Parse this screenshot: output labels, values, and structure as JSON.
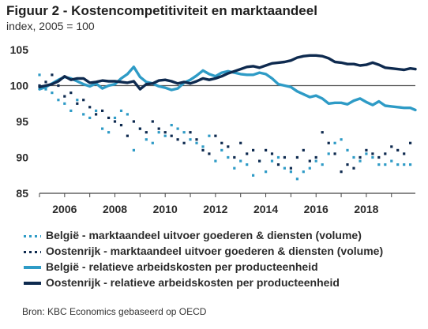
{
  "title": "Figuur 2 - Kostencompetitiviteit en marktaandeel",
  "subtitle": "index, 2005 = 100",
  "source": "Bron: KBC Economics gebaseerd op OECD",
  "colors": {
    "light_blue": "#2e9bc6",
    "dark_navy": "#0e2a4f",
    "axis": "#333333"
  },
  "chart_data": {
    "type": "line",
    "title": "Figuur 2 - Kostencompetitiviteit en marktaandeel",
    "subtitle": "index, 2005 = 100",
    "ylim": [
      85,
      105
    ],
    "yticks": [
      85,
      90,
      95,
      100,
      105
    ],
    "xlim": [
      2005.0,
      2019.95
    ],
    "xticks": [
      2006,
      2008,
      2010,
      2012,
      2014,
      2016,
      2018
    ],
    "reference_line": 100,
    "grid": false,
    "legend_position": "bottom",
    "series": [
      {
        "name": "België - marktaandeel uitvoer goederen & diensten (volume)",
        "style": "dotted",
        "color": "#2e9bc6",
        "x": [
          2005.0,
          2005.25,
          2005.5,
          2005.75,
          2006.0,
          2006.25,
          2006.5,
          2006.75,
          2007.0,
          2007.25,
          2007.5,
          2007.75,
          2008.0,
          2008.25,
          2008.5,
          2008.75,
          2009.0,
          2009.25,
          2009.5,
          2009.75,
          2010.0,
          2010.25,
          2010.5,
          2010.75,
          2011.0,
          2011.25,
          2011.5,
          2011.75,
          2012.0,
          2012.25,
          2012.5,
          2012.75,
          2013.0,
          2013.25,
          2013.5,
          2013.75,
          2014.0,
          2014.25,
          2014.5,
          2014.75,
          2015.0,
          2015.25,
          2015.5,
          2015.75,
          2016.0,
          2016.25,
          2016.5,
          2016.75,
          2017.0,
          2017.25,
          2017.5,
          2017.75,
          2018.0,
          2018.25,
          2018.5,
          2018.75,
          2019.0,
          2019.25,
          2019.5,
          2019.75
        ],
        "values": [
          101.5,
          99.5,
          99.0,
          98.0,
          97.5,
          96.5,
          98.0,
          96.0,
          95.5,
          96.5,
          94.0,
          93.5,
          95.5,
          96.5,
          96.0,
          91.0,
          94.0,
          92.5,
          92.0,
          93.5,
          93.0,
          94.5,
          94.0,
          93.5,
          92.5,
          92.0,
          91.5,
          93.0,
          89.5,
          91.0,
          90.0,
          88.5,
          89.5,
          89.0,
          87.5,
          89.5,
          88.0,
          89.5,
          90.0,
          88.5,
          88.0,
          87.0,
          88.0,
          88.5,
          89.5,
          89.0,
          90.5,
          92.0,
          92.5,
          91.0,
          90.0,
          89.5,
          90.5,
          90.0,
          89.0,
          89.0,
          89.5,
          89.0,
          89.0,
          89.0
        ]
      },
      {
        "name": "Oostenrijk - marktaandeel uitvoer goederen & diensten (volume)",
        "style": "dotted",
        "color": "#0e2a4f",
        "x": [
          2005.0,
          2005.25,
          2005.5,
          2005.75,
          2006.0,
          2006.25,
          2006.5,
          2006.75,
          2007.0,
          2007.25,
          2007.5,
          2007.75,
          2008.0,
          2008.25,
          2008.5,
          2008.75,
          2009.0,
          2009.25,
          2009.5,
          2009.75,
          2010.0,
          2010.25,
          2010.5,
          2010.75,
          2011.0,
          2011.25,
          2011.5,
          2011.75,
          2012.0,
          2012.25,
          2012.5,
          2012.75,
          2013.0,
          2013.25,
          2013.5,
          2013.75,
          2014.0,
          2014.25,
          2014.5,
          2014.75,
          2015.0,
          2015.25,
          2015.5,
          2015.75,
          2016.0,
          2016.25,
          2016.5,
          2016.75,
          2017.0,
          2017.25,
          2017.5,
          2017.75,
          2018.0,
          2018.25,
          2018.5,
          2018.75,
          2019.0,
          2019.25,
          2019.5,
          2019.75
        ],
        "values": [
          100.0,
          100.5,
          101.5,
          100.0,
          98.5,
          99.0,
          97.5,
          98.0,
          97.0,
          96.0,
          96.5,
          95.5,
          95.0,
          94.5,
          93.0,
          95.0,
          94.0,
          93.5,
          95.0,
          94.0,
          93.5,
          93.0,
          92.5,
          92.0,
          93.5,
          92.5,
          91.0,
          90.5,
          93.0,
          92.0,
          91.5,
          90.0,
          92.0,
          90.5,
          91.0,
          89.5,
          91.0,
          90.5,
          89.0,
          90.0,
          88.5,
          90.0,
          91.0,
          89.5,
          90.0,
          93.5,
          92.0,
          90.5,
          88.0,
          89.0,
          88.5,
          90.0,
          91.0,
          90.5,
          90.0,
          90.5,
          91.5,
          91.0,
          90.5,
          92.0
        ]
      },
      {
        "name": "België - relatieve arbeidskosten per producteenheid",
        "style": "solid",
        "color": "#2e9bc6",
        "x": [
          2005.0,
          2005.25,
          2005.5,
          2005.75,
          2006.0,
          2006.25,
          2006.5,
          2006.75,
          2007.0,
          2007.25,
          2007.5,
          2007.75,
          2008.0,
          2008.25,
          2008.5,
          2008.75,
          2009.0,
          2009.25,
          2009.5,
          2009.75,
          2010.0,
          2010.25,
          2010.5,
          2010.75,
          2011.0,
          2011.25,
          2011.5,
          2011.75,
          2012.0,
          2012.25,
          2012.5,
          2012.75,
          2013.0,
          2013.25,
          2013.5,
          2013.75,
          2014.0,
          2014.25,
          2014.5,
          2014.75,
          2015.0,
          2015.25,
          2015.5,
          2015.75,
          2016.0,
          2016.25,
          2016.5,
          2016.75,
          2017.0,
          2017.25,
          2017.5,
          2017.75,
          2018.0,
          2018.25,
          2018.5,
          2018.75,
          2019.0,
          2019.25,
          2019.5,
          2019.75,
          2019.95
        ],
        "values": [
          99.5,
          99.8,
          100.3,
          100.8,
          101.2,
          101.0,
          100.6,
          100.2,
          99.9,
          100.3,
          99.6,
          100.0,
          100.2,
          101.0,
          101.6,
          102.6,
          101.2,
          100.5,
          100.3,
          99.9,
          99.7,
          99.4,
          99.6,
          100.4,
          100.8,
          101.4,
          102.1,
          101.6,
          101.3,
          101.8,
          102.0,
          101.8,
          101.6,
          101.5,
          101.5,
          101.8,
          101.6,
          101.0,
          100.2,
          100.0,
          99.8,
          99.2,
          98.8,
          98.4,
          98.6,
          98.2,
          97.5,
          97.6,
          97.6,
          97.4,
          97.9,
          98.2,
          97.7,
          97.3,
          97.8,
          97.2,
          97.1,
          97.0,
          96.9,
          96.9,
          96.6
        ]
      },
      {
        "name": "Oostenrijk - relatieve arbeidskosten per producteenheid",
        "style": "solid",
        "color": "#0e2a4f",
        "x": [
          2005.0,
          2005.25,
          2005.5,
          2005.75,
          2006.0,
          2006.25,
          2006.5,
          2006.75,
          2007.0,
          2007.25,
          2007.5,
          2007.75,
          2008.0,
          2008.25,
          2008.5,
          2008.75,
          2009.0,
          2009.25,
          2009.5,
          2009.75,
          2010.0,
          2010.25,
          2010.5,
          2010.75,
          2011.0,
          2011.25,
          2011.5,
          2011.75,
          2012.0,
          2012.25,
          2012.5,
          2012.75,
          2013.0,
          2013.25,
          2013.5,
          2013.75,
          2014.0,
          2014.25,
          2014.5,
          2014.75,
          2015.0,
          2015.25,
          2015.5,
          2015.75,
          2016.0,
          2016.25,
          2016.5,
          2016.75,
          2017.0,
          2017.25,
          2017.5,
          2017.75,
          2018.0,
          2018.25,
          2018.5,
          2018.75,
          2019.0,
          2019.25,
          2019.5,
          2019.75,
          2019.95
        ],
        "values": [
          99.8,
          100.0,
          100.2,
          100.6,
          101.3,
          100.8,
          101.0,
          101.0,
          100.4,
          100.5,
          100.7,
          100.6,
          100.6,
          100.5,
          100.4,
          100.6,
          99.5,
          100.2,
          100.3,
          100.7,
          100.8,
          100.6,
          100.3,
          100.5,
          100.3,
          100.6,
          101.0,
          100.8,
          101.0,
          101.3,
          101.7,
          102.0,
          102.3,
          102.6,
          102.7,
          102.5,
          102.8,
          103.1,
          103.2,
          103.3,
          103.5,
          103.9,
          104.1,
          104.2,
          104.2,
          104.1,
          103.8,
          103.3,
          103.2,
          103.0,
          103.0,
          102.8,
          102.9,
          103.2,
          102.9,
          102.5,
          102.4,
          102.3,
          102.2,
          102.4,
          102.3
        ]
      }
    ]
  }
}
